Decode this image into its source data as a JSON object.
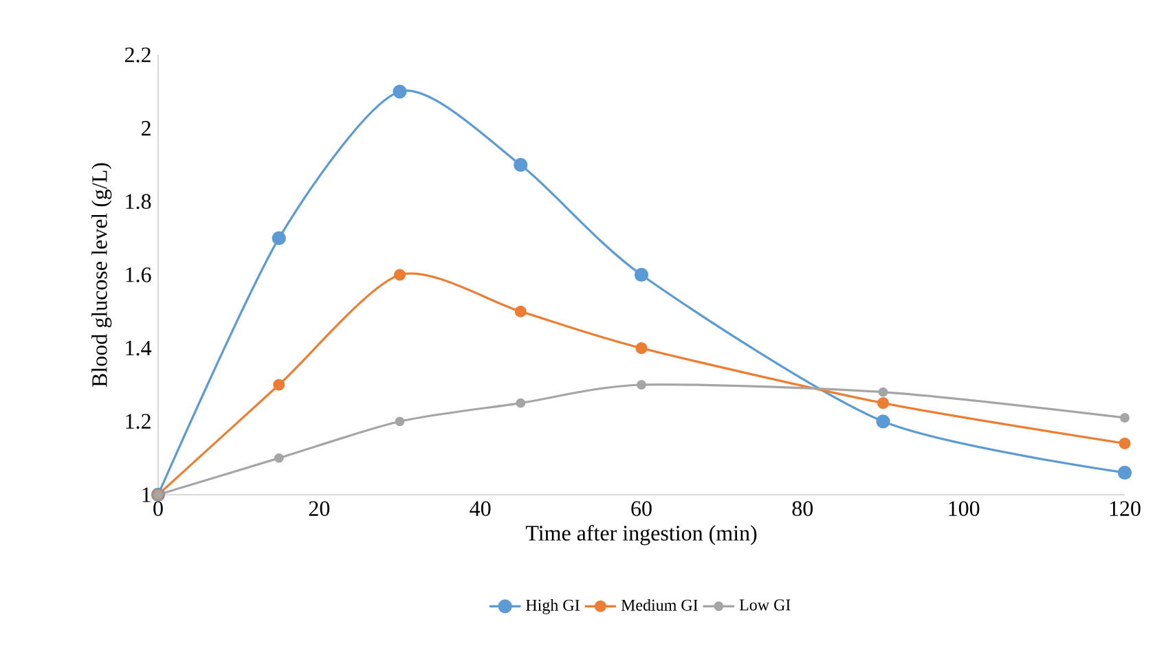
{
  "chart_data": {
    "type": "line",
    "xlabel": "Time after ingestion (min)",
    "ylabel": "Blood glucose level (g/L)",
    "x": [
      0,
      15,
      30,
      45,
      60,
      90,
      120
    ],
    "series": [
      {
        "name": "High GI",
        "color": "#5b9bd5",
        "values": [
          1,
          1.7,
          2.1,
          1.9,
          1.6,
          1.2,
          1.06
        ]
      },
      {
        "name": "Medium GI",
        "color": "#ed7d31",
        "values": [
          1,
          1.3,
          1.6,
          1.5,
          1.4,
          1.25,
          1.14
        ]
      },
      {
        "name": "Low GI",
        "color": "#a5a5a5",
        "values": [
          1,
          1.1,
          1.2,
          1.25,
          1.3,
          1.28,
          1.21
        ]
      }
    ],
    "xlim": [
      0,
      120
    ],
    "xticks": [
      0,
      20,
      40,
      60,
      80,
      100,
      120
    ],
    "ylim": [
      1,
      2.2
    ],
    "yticks": [
      1,
      1.2,
      1.4,
      1.6,
      1.8,
      2,
      2.2
    ],
    "grid": false,
    "legend": "bottom",
    "marker": "circle",
    "line_style": "solid"
  }
}
